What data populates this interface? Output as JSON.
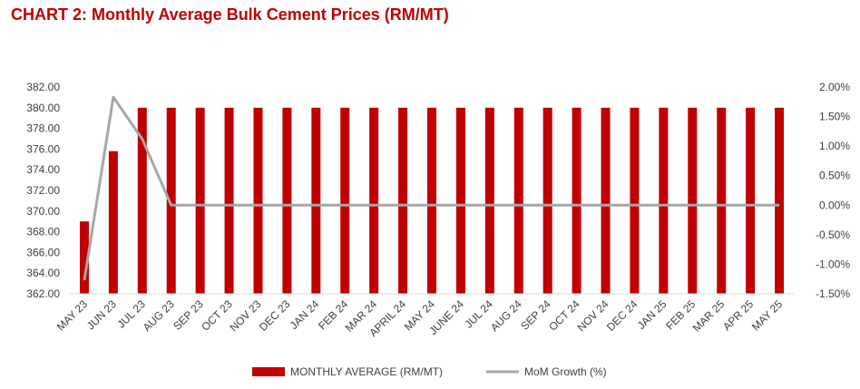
{
  "chart_data": {
    "type": "bar",
    "title": "CHART 2:  Monthly Average Bulk Cement Prices (RM/MT)",
    "categories": [
      "MAY 23",
      "JUN 23",
      "JUL 23",
      "AUG 23",
      "SEP 23",
      "OCT 23",
      "NOV 23",
      "DEC 23",
      "JAN 24",
      "FEB 24",
      "MAR 24",
      "APRIL 24",
      "MAY 24",
      "JUNE 24",
      "JUL 24",
      "AUG 24",
      "SEP 24",
      "OCT 24",
      "NOV 24",
      "DEC 24",
      "JAN 25",
      "FEB 25",
      "MAR 25",
      "APR 25",
      "MAY 25"
    ],
    "series": [
      {
        "name": "MONTHLY AVERAGE (RM/MT)",
        "type": "bar",
        "axis": "left",
        "color": "#c00000",
        "values": [
          369.0,
          375.8,
          380.0,
          380.0,
          380.0,
          380.0,
          380.0,
          380.0,
          380.0,
          380.0,
          380.0,
          380.0,
          380.0,
          380.0,
          380.0,
          380.0,
          380.0,
          380.0,
          380.0,
          380.0,
          380.0,
          380.0,
          380.0,
          380.0,
          380.0
        ]
      },
      {
        "name": "MoM Growth (%)",
        "type": "line",
        "axis": "right",
        "color": "#a6a6a6",
        "values": [
          -1.27,
          1.83,
          1.12,
          0.0,
          0.0,
          0.0,
          0.0,
          0.0,
          0.0,
          0.0,
          0.0,
          0.0,
          0.0,
          0.0,
          0.0,
          0.0,
          0.0,
          0.0,
          0.0,
          0.0,
          0.0,
          0.0,
          0.0,
          0.0,
          0.0
        ]
      }
    ],
    "ylim_left": [
      362,
      382
    ],
    "yticks_left": [
      "362.00",
      "364.00",
      "366.00",
      "368.00",
      "370.00",
      "372.00",
      "374.00",
      "376.00",
      "378.00",
      "380.00",
      "382.00"
    ],
    "ylim_right": [
      -1.5,
      2.0
    ],
    "yticks_right": [
      "-1.50%",
      "-1.00%",
      "-0.50%",
      "0.00%",
      "0.50%",
      "1.00%",
      "1.50%",
      "2.00%"
    ],
    "legend_position": "bottom",
    "grid": false
  }
}
